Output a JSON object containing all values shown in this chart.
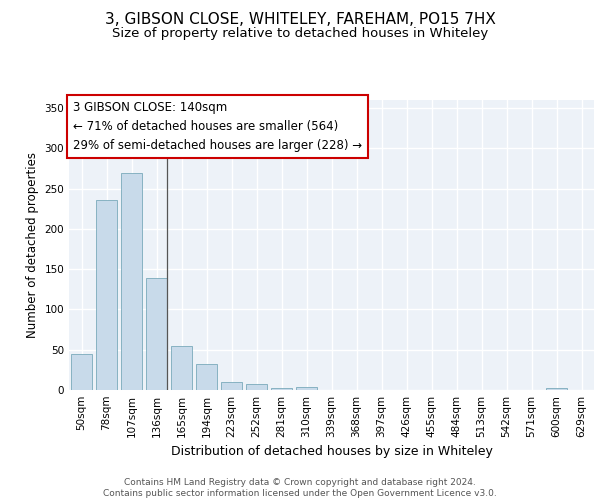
{
  "title1": "3, GIBSON CLOSE, WHITELEY, FAREHAM, PO15 7HX",
  "title2": "Size of property relative to detached houses in Whiteley",
  "xlabel": "Distribution of detached houses by size in Whiteley",
  "ylabel": "Number of detached properties",
  "categories": [
    "50sqm",
    "78sqm",
    "107sqm",
    "136sqm",
    "165sqm",
    "194sqm",
    "223sqm",
    "252sqm",
    "281sqm",
    "310sqm",
    "339sqm",
    "368sqm",
    "397sqm",
    "426sqm",
    "455sqm",
    "484sqm",
    "513sqm",
    "542sqm",
    "571sqm",
    "600sqm",
    "629sqm"
  ],
  "values": [
    45,
    236,
    270,
    139,
    55,
    32,
    10,
    7,
    3,
    4,
    0,
    0,
    0,
    0,
    0,
    0,
    0,
    0,
    0,
    3,
    0
  ],
  "bar_color": "#c8daea",
  "bar_edge_color": "#7aaabb",
  "annotation_box_color": "#ffffff",
  "annotation_box_edge": "#cc0000",
  "annotation_text": "3 GIBSON CLOSE: 140sqm\n← 71% of detached houses are smaller (564)\n29% of semi-detached houses are larger (228) →",
  "ylim": [
    0,
    360
  ],
  "yticks": [
    0,
    50,
    100,
    150,
    200,
    250,
    300,
    350
  ],
  "background_color": "#edf2f8",
  "grid_color": "#ffffff",
  "footer": "Contains HM Land Registry data © Crown copyright and database right 2024.\nContains public sector information licensed under the Open Government Licence v3.0.",
  "title1_fontsize": 11,
  "title2_fontsize": 9.5,
  "annotation_fontsize": 8.5,
  "tick_fontsize": 7.5,
  "ylabel_fontsize": 8.5,
  "xlabel_fontsize": 9,
  "footer_fontsize": 6.5
}
